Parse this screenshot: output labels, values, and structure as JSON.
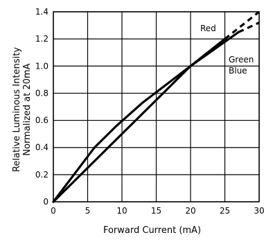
{
  "chart_data": {
    "type": "line",
    "xlabel": "Forward Current (mA)",
    "ylabel": [
      "Relative Luminous Intensity",
      "Normalized at 20mA"
    ],
    "xlim": [
      0,
      30
    ],
    "ylim": [
      0,
      1.4
    ],
    "x_ticks": [
      "0",
      "5",
      "10",
      "15",
      "20",
      "25",
      "30"
    ],
    "y_ticks": [
      "0",
      "0.2",
      "0.4",
      "0.6",
      "0.8",
      "1.0",
      "1.2",
      "1.4"
    ],
    "grid": true,
    "series": [
      {
        "name": "Red",
        "label_lines": [
          "Red"
        ],
        "points": [
          [
            0,
            0
          ],
          [
            5,
            0.25
          ],
          [
            10,
            0.5
          ],
          [
            15,
            0.75
          ],
          [
            20,
            1.0
          ],
          [
            25,
            1.2
          ]
        ],
        "dashed_points": [
          [
            25,
            1.2
          ],
          [
            30,
            1.4
          ]
        ]
      },
      {
        "name": "Green Blue",
        "label_lines": [
          "Green",
          "Blue"
        ],
        "points": [
          [
            0,
            0
          ],
          [
            3,
            0.2
          ],
          [
            6,
            0.4
          ],
          [
            9,
            0.55
          ],
          [
            13,
            0.73
          ],
          [
            20,
            1.0
          ],
          [
            27,
            1.25
          ]
        ],
        "dashed_points": [
          [
            27,
            1.25
          ],
          [
            30,
            1.32
          ]
        ]
      }
    ]
  }
}
